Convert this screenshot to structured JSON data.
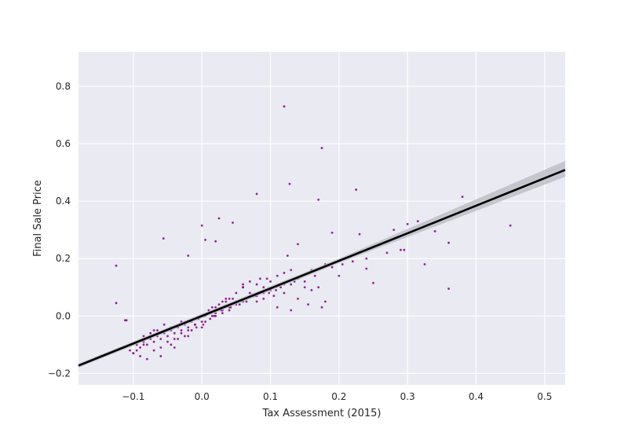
{
  "chart_data": {
    "type": "scatter",
    "title": "",
    "xlabel": "Tax Assessment (2015)",
    "ylabel": "Final Sale Price",
    "xlim": [
      -0.18,
      0.53
    ],
    "ylim": [
      -0.24,
      0.92
    ],
    "x_ticks": [
      -0.1,
      0.0,
      0.1,
      0.2,
      0.3,
      0.4,
      0.5
    ],
    "x_tick_labels": [
      "−0.1",
      "0.0",
      "0.1",
      "0.2",
      "0.3",
      "0.4",
      "0.5"
    ],
    "y_ticks": [
      -0.2,
      0.0,
      0.2,
      0.4,
      0.6,
      0.8
    ],
    "y_tick_labels": [
      "−0.2",
      "0.0",
      "0.2",
      "0.4",
      "0.6",
      "0.8"
    ],
    "grid": true,
    "background_color": "#eaeaf2",
    "point_color": "#800080",
    "line_color": "#000000",
    "band_color": "#b8b8c0",
    "regression": {
      "slope": 0.96,
      "intercept": 0.0,
      "ci_low": {
        "x": [
          -0.18,
          0.0,
          0.2,
          0.53
        ],
        "y": [
          -0.18,
          -0.008,
          0.184,
          0.485
        ]
      },
      "ci_high": {
        "x": [
          -0.18,
          0.0,
          0.2,
          0.53
        ],
        "y": [
          -0.166,
          0.008,
          0.2,
          0.54
        ]
      }
    },
    "points": {
      "x": [
        -0.125,
        -0.125,
        -0.112,
        -0.11,
        -0.056,
        0.0,
        0.005,
        0.025,
        0.045,
        0.02,
        -0.02,
        0.08,
        0.12,
        0.128,
        0.175,
        0.17,
        0.225,
        0.14,
        0.125,
        0.19,
        0.23,
        0.28,
        0.3,
        0.295,
        0.315,
        0.34,
        0.36,
        0.38,
        0.45,
        0.325,
        0.36,
        0.25,
        0.24,
        0.22,
        0.2,
        0.18,
        0.16,
        0.15,
        0.13,
        0.12,
        0.105,
        0.1,
        0.095,
        0.09,
        0.08,
        0.07,
        0.06,
        0.05,
        0.045,
        0.04,
        0.035,
        0.03,
        0.025,
        0.02,
        0.015,
        0.01,
        0.005,
        -0.005,
        -0.01,
        -0.015,
        -0.02,
        -0.025,
        -0.03,
        -0.035,
        -0.04,
        -0.045,
        -0.05,
        -0.055,
        -0.06,
        -0.065,
        -0.07,
        -0.075,
        -0.08,
        -0.085,
        -0.09,
        -0.095,
        -0.1,
        -0.105,
        -0.09,
        -0.085,
        -0.07,
        -0.06,
        -0.05,
        -0.04,
        -0.03,
        -0.02,
        -0.01,
        0.0,
        0.01,
        0.02,
        0.03,
        0.04,
        0.05,
        0.06,
        0.07,
        0.08,
        0.09,
        0.1,
        0.11,
        0.12,
        0.13,
        0.14,
        0.15,
        0.16,
        0.17,
        0.18,
        0.085,
        0.11,
        0.13,
        0.155,
        0.14,
        0.175,
        0.06,
        0.035,
        0.015,
        -0.005,
        -0.03,
        -0.045,
        -0.065,
        -0.075,
        -0.095,
        -0.1,
        -0.08,
        -0.06,
        -0.04,
        -0.02,
        0.0,
        0.02,
        0.04,
        0.06,
        0.08,
        0.1,
        0.12,
        -0.035,
        -0.025,
        -0.045,
        -0.055,
        -0.07,
        -0.085,
        0.005,
        0.012,
        0.03,
        0.055,
        0.075,
        0.09,
        0.115,
        0.135,
        0.165,
        0.19,
        0.205,
        0.24,
        0.27,
        0.29,
        -0.015,
        -0.008,
        0.002,
        0.018,
        0.028,
        0.042,
        0.065,
        0.078,
        0.098,
        0.108
      ],
      "y": [
        0.175,
        0.045,
        -0.015,
        -0.015,
        0.27,
        0.315,
        0.265,
        0.34,
        0.325,
        0.26,
        0.21,
        0.425,
        0.73,
        0.46,
        0.585,
        0.405,
        0.44,
        0.25,
        0.21,
        0.29,
        0.285,
        0.3,
        0.32,
        0.23,
        0.33,
        0.295,
        0.255,
        0.415,
        0.315,
        0.18,
        0.095,
        0.115,
        0.165,
        0.19,
        0.14,
        0.18,
        0.16,
        0.1,
        0.11,
        0.08,
        0.07,
        0.09,
        0.13,
        0.06,
        0.05,
        0.08,
        0.1,
        0.04,
        0.06,
        0.03,
        0.05,
        0.02,
        0.04,
        0.01,
        0.0,
        0.02,
        -0.02,
        -0.01,
        -0.03,
        -0.02,
        -0.04,
        -0.03,
        -0.05,
        -0.04,
        -0.06,
        -0.05,
        -0.07,
        -0.06,
        -0.08,
        -0.07,
        -0.09,
        -0.08,
        -0.1,
        -0.09,
        -0.11,
        -0.12,
        -0.13,
        -0.12,
        -0.14,
        -0.1,
        -0.12,
        -0.11,
        -0.09,
        -0.08,
        -0.06,
        -0.05,
        -0.03,
        -0.02,
        0.01,
        0.03,
        0.05,
        0.06,
        0.08,
        0.1,
        0.12,
        0.11,
        0.1,
        0.12,
        0.14,
        0.15,
        0.16,
        0.13,
        0.12,
        0.09,
        0.1,
        0.05,
        0.13,
        0.03,
        0.02,
        0.04,
        0.06,
        0.03,
        0.11,
        0.06,
        0.03,
        -0.01,
        -0.02,
        -0.04,
        -0.05,
        -0.06,
        -0.1,
        -0.13,
        -0.15,
        -0.14,
        -0.11,
        -0.07,
        -0.04,
        0.0,
        0.02,
        0.05,
        0.07,
        0.09,
        0.11,
        -0.08,
        -0.07,
        -0.1,
        -0.03,
        -0.05,
        -0.07,
        0.0,
        -0.01,
        0.01,
        0.04,
        0.07,
        0.08,
        0.1,
        0.12,
        0.14,
        0.17,
        0.18,
        0.2,
        0.22,
        0.23,
        -0.05,
        -0.04,
        -0.03,
        0.0,
        0.02,
        0.03,
        0.05,
        0.07,
        0.08,
        0.09
      ]
    }
  }
}
